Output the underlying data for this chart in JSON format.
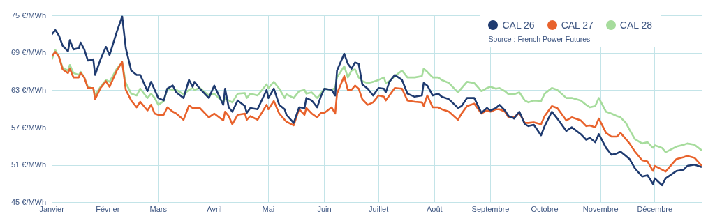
{
  "chart_data": {
    "type": "line",
    "annotations": [
      "Source : French Power Futures"
    ],
    "x": [
      "--01-01",
      "--01-03",
      "--01-05",
      "--01-07",
      "--01-10",
      "--01-11",
      "--01-13",
      "--01-16",
      "--01-17",
      "--01-19",
      "--01-21",
      "--01-24",
      "--01-25",
      "--01-28",
      "--01-31",
      "--02-02",
      "--02-06",
      "--02-09",
      "--02-11",
      "--02-14",
      "--02-17",
      "--02-19",
      "--02-23",
      "--02-25",
      "--02-27",
      "--03-01",
      "--03-04",
      "--03-06",
      "--03-09",
      "--03-11",
      "--03-15",
      "--03-18",
      "--03-20",
      "--03-21",
      "--03-24",
      "--03-29",
      "--04-01",
      "--04-06",
      "--04-07",
      "--04-09",
      "--04-11",
      "--04-14",
      "--04-18",
      "--04-19",
      "--04-21",
      "--04-25",
      "--04-30",
      "--05-01",
      "--05-04",
      "--05-07",
      "--05-10",
      "--05-11",
      "--05-15",
      "--05-18",
      "--05-21",
      "--05-22",
      "--05-25",
      "--05-28",
      "--05-30",
      "--06-01",
      "--06-05",
      "--06-07",
      "--06-08",
      "--06-12",
      "--06-14",
      "--06-16",
      "--06-18",
      "--06-20",
      "--06-22",
      "--06-25",
      "--06-28",
      "--07-01",
      "--07-04",
      "--07-05",
      "--07-07",
      "--07-10",
      "--07-14",
      "--07-17",
      "--07-21",
      "--07-25",
      "--07-26",
      "--07-28",
      "--07-31",
      "--08-03",
      "--08-05",
      "--08-09",
      "--08-14",
      "--08-16",
      "--08-19",
      "--08-23",
      "--08-27",
      "--08-30",
      "--09-01",
      "--09-04",
      "--09-06",
      "--09-09",
      "--09-11",
      "--09-14",
      "--09-17",
      "--09-20",
      "--09-22",
      "--09-25",
      "--09-29",
      "--10-01",
      "--10-05",
      "--10-08",
      "--10-13",
      "--10-16",
      "--10-21",
      "--10-24",
      "--10-26",
      "--10-29",
      "--10-31",
      "--11-04",
      "--11-07",
      "--11-10",
      "--11-12",
      "--11-15",
      "--11-17",
      "--11-20",
      "--11-24",
      "--11-27",
      "--11-30",
      "--12-01",
      "--12-05",
      "--12-07",
      "--12-13",
      "--12-17",
      "--12-19",
      "--12-23",
      "--12-27"
    ],
    "series": [
      {
        "name": "CAL 26",
        "color": "#1f3b70",
        "values": [
          72.0,
          72.7,
          71.8,
          70.2,
          69.3,
          71.1,
          69.6,
          69.8,
          70.7,
          69.6,
          67.8,
          68.0,
          65.5,
          68.0,
          70.0,
          68.7,
          72.4,
          74.9,
          69.8,
          66.2,
          65.5,
          65.5,
          62.9,
          64.4,
          63.1,
          61.8,
          61.4,
          63.3,
          63.8,
          62.7,
          61.8,
          64.7,
          63.6,
          64.4,
          63.3,
          61.8,
          63.8,
          60.7,
          63.3,
          60.3,
          59.6,
          61.4,
          60.5,
          59.4,
          60.2,
          60.0,
          63.1,
          61.8,
          63.3,
          60.7,
          60.0,
          59.1,
          57.8,
          60.3,
          60.2,
          61.8,
          61.4,
          60.3,
          62.0,
          63.3,
          63.1,
          62.2,
          66.2,
          68.9,
          67.3,
          66.5,
          67.5,
          67.3,
          64.0,
          63.3,
          62.2,
          63.4,
          63.3,
          62.7,
          64.4,
          65.5,
          64.7,
          62.5,
          62.0,
          62.2,
          64.2,
          63.8,
          62.2,
          62.5,
          62.0,
          61.6,
          60.2,
          60.5,
          61.8,
          61.8,
          59.4,
          60.2,
          59.8,
          60.2,
          60.7,
          59.8,
          58.9,
          58.5,
          59.6,
          57.6,
          57.3,
          57.5,
          55.8,
          57.3,
          59.6,
          58.5,
          56.5,
          57.1,
          56.0,
          55.1,
          55.4,
          54.7,
          56.0,
          53.8,
          52.7,
          52.9,
          53.2,
          52.5,
          52.0,
          50.5,
          49.2,
          49.4,
          48.0,
          48.9,
          47.8,
          48.9,
          50.1,
          50.3,
          50.9,
          51.1,
          50.7
        ]
      },
      {
        "name": "CAL 27",
        "color": "#e8622c",
        "values": [
          68.5,
          69.2,
          68.4,
          66.4,
          65.8,
          66.5,
          65.1,
          65.1,
          65.8,
          65.1,
          63.4,
          63.4,
          61.6,
          63.4,
          64.5,
          63.6,
          66.2,
          67.6,
          63.1,
          61.4,
          60.3,
          61.2,
          59.8,
          60.7,
          59.3,
          59.1,
          59.1,
          60.3,
          59.6,
          59.3,
          58.3,
          60.6,
          60.2,
          60.2,
          60.2,
          58.7,
          59.3,
          58.2,
          59.6,
          58.9,
          57.6,
          59.1,
          59.3,
          58.3,
          58.9,
          58.3,
          60.7,
          60.0,
          61.3,
          59.3,
          58.3,
          58.0,
          57.4,
          60.0,
          59.1,
          60.2,
          59.3,
          58.7,
          59.4,
          59.4,
          60.3,
          59.3,
          62.5,
          65.3,
          63.1,
          63.1,
          63.8,
          63.3,
          61.6,
          60.7,
          61.1,
          62.2,
          62.0,
          61.4,
          62.2,
          63.4,
          63.3,
          61.4,
          61.2,
          61.1,
          60.5,
          62.2,
          60.3,
          60.3,
          60.0,
          59.6,
          58.3,
          59.3,
          60.5,
          60.9,
          59.3,
          59.8,
          59.6,
          60.0,
          60.0,
          59.6,
          58.7,
          58.7,
          59.4,
          57.8,
          57.8,
          57.9,
          57.6,
          58.9,
          60.5,
          60.2,
          58.2,
          58.7,
          58.2,
          57.3,
          57.4,
          57.1,
          58.5,
          56.2,
          55.6,
          55.6,
          56.2,
          55.2,
          54.5,
          53.2,
          51.8,
          51.6,
          50.1,
          50.9,
          50.3,
          50.0,
          52.0,
          52.3,
          52.5,
          52.2,
          50.9
        ]
      },
      {
        "name": "CAL 28",
        "color": "#a6dc9c",
        "values": [
          68.0,
          69.5,
          68.4,
          66.7,
          66.2,
          67.1,
          65.8,
          65.5,
          66.0,
          65.1,
          63.6,
          63.3,
          62.2,
          63.6,
          64.7,
          64.4,
          66.5,
          67.5,
          64.2,
          62.5,
          62.2,
          63.3,
          61.8,
          62.5,
          61.8,
          60.7,
          61.3,
          63.3,
          63.1,
          63.1,
          62.4,
          63.1,
          63.4,
          63.1,
          63.4,
          62.2,
          62.5,
          61.1,
          61.8,
          61.4,
          61.1,
          62.5,
          62.6,
          61.8,
          62.5,
          62.2,
          64.0,
          63.4,
          64.4,
          63.3,
          61.8,
          62.4,
          61.8,
          62.9,
          63.1,
          62.5,
          62.7,
          61.8,
          62.5,
          63.3,
          63.1,
          63.4,
          65.1,
          66.9,
          65.1,
          66.2,
          66.4,
          65.1,
          64.5,
          64.2,
          64.4,
          64.7,
          65.1,
          64.2,
          64.5,
          65.3,
          66.2,
          65.1,
          65.1,
          65.3,
          66.5,
          66.0,
          65.1,
          65.1,
          64.7,
          64.2,
          62.7,
          63.4,
          64.4,
          64.2,
          62.9,
          63.4,
          63.6,
          63.3,
          63.4,
          62.9,
          62.4,
          62.4,
          62.7,
          61.4,
          61.1,
          61.4,
          61.3,
          62.5,
          63.4,
          63.1,
          61.8,
          61.8,
          61.4,
          60.7,
          60.3,
          60.5,
          61.8,
          59.6,
          59.3,
          58.9,
          58.7,
          57.8,
          56.7,
          55.2,
          54.5,
          54.7,
          53.8,
          54.2,
          53.8,
          53.1,
          54.0,
          54.3,
          54.5,
          54.3,
          53.4
        ]
      }
    ],
    "xlim": [
      "--01-01",
      "--12-27"
    ],
    "xticks": [
      {
        "value": "--01-01",
        "label": "Janvier"
      },
      {
        "value": "--02-01",
        "label": "Février"
      },
      {
        "value": "--03-01",
        "label": "Mars"
      },
      {
        "value": "--04-01",
        "label": "Avril"
      },
      {
        "value": "--05-01",
        "label": "Mai"
      },
      {
        "value": "--06-01",
        "label": "Juin"
      },
      {
        "value": "--07-01",
        "label": "Juillet"
      },
      {
        "value": "--08-01",
        "label": "Août"
      },
      {
        "value": "--09-01",
        "label": "Septembre"
      },
      {
        "value": "--10-01",
        "label": "Octobre"
      },
      {
        "value": "--11-01",
        "label": "Novembre"
      },
      {
        "value": "--12-01",
        "label": "Décembre"
      }
    ],
    "ylim": [
      45,
      75
    ],
    "yticks": [
      {
        "value": 45,
        "label": "45 €/MWh"
      },
      {
        "value": 51,
        "label": "51 €/MWh"
      },
      {
        "value": 57,
        "label": "57 €/MWh"
      },
      {
        "value": 63,
        "label": "63 €/MWh"
      },
      {
        "value": 69,
        "label": "69 €/MWh"
      },
      {
        "value": 75,
        "label": "75 €/MWh"
      }
    ],
    "grid": true,
    "legend": "top right",
    "marker": "none",
    "line_style": "solid"
  }
}
